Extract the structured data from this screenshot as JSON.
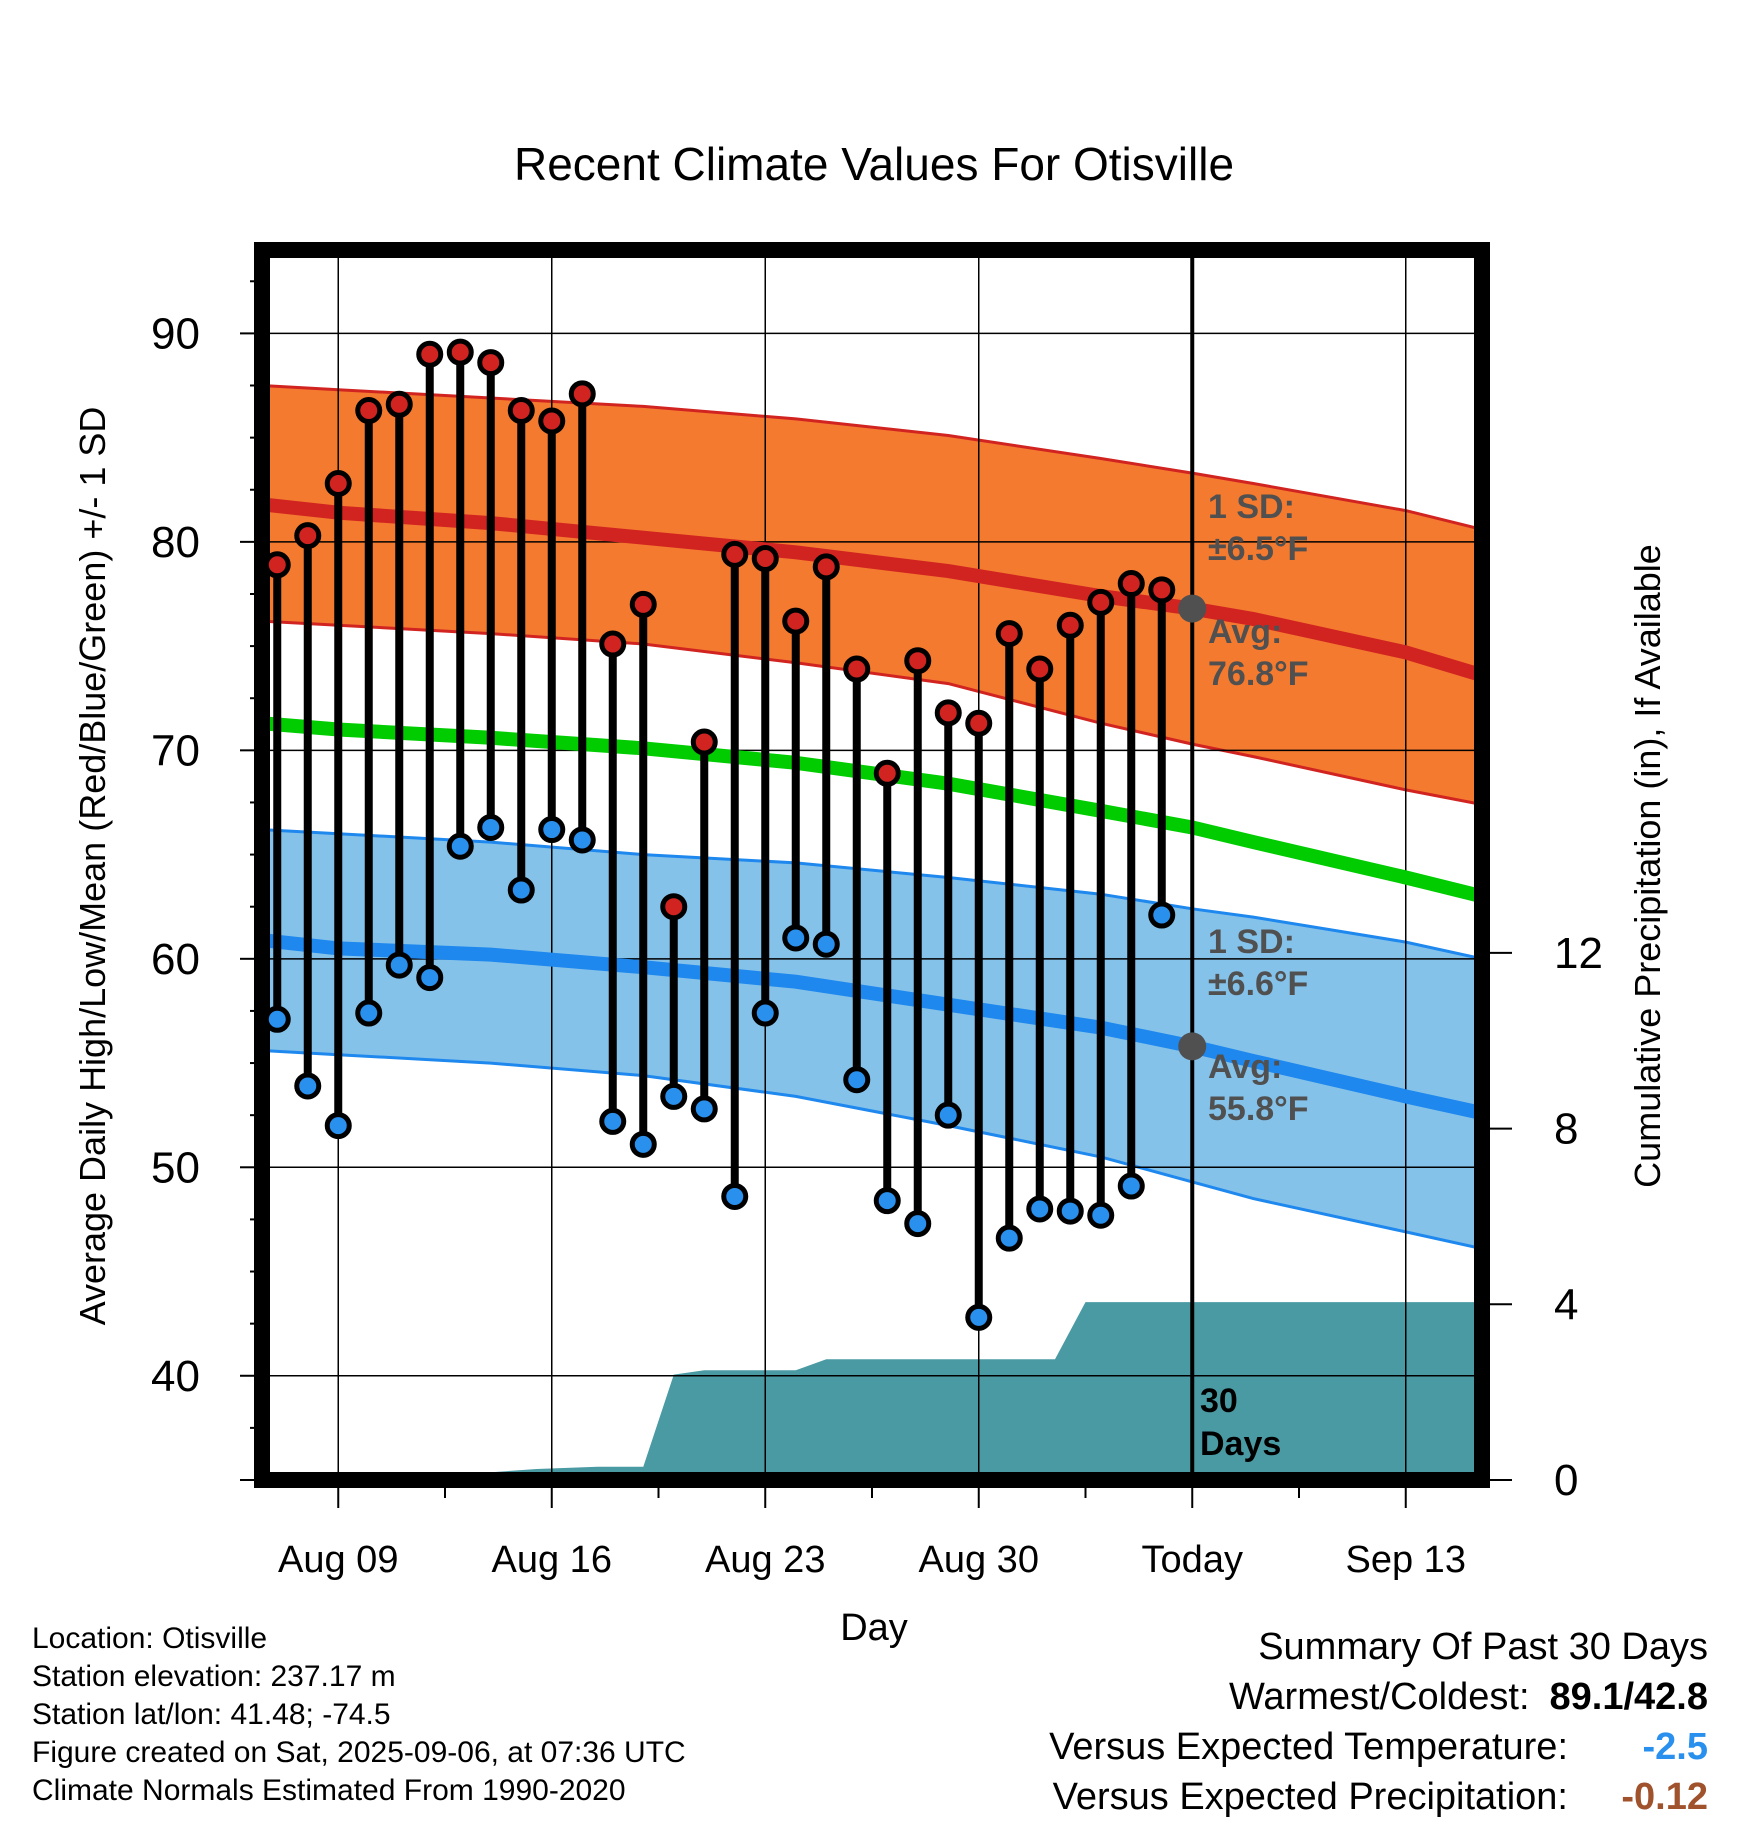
{
  "title": "Recent Climate Values For Otisville",
  "y_left_label": "Average Daily High/Low/Mean (Red/Blue/Green) +/- 1 SD",
  "y_right_label": "Cumulative Precipitation (in), If Available",
  "x_label": "Day",
  "annotations": {
    "high_sd": "1 SD:",
    "high_sd_val": "±6.5°F",
    "high_avg": "Avg:",
    "high_avg_val": "76.8°F",
    "low_sd": "1 SD:",
    "low_sd_val": "±6.6°F",
    "low_avg": "Avg:",
    "low_avg_val": "55.8°F",
    "days_1": "30",
    "days_2": "Days"
  },
  "info": {
    "location": "Location: Otisville",
    "elevation": "Station elevation: 237.17 m",
    "latlon": "Station lat/lon: 41.48; -74.5",
    "created": "Figure created on Sat, 2025-09-06, at 07:36 UTC",
    "normals": "Climate Normals Estimated From 1990-2020"
  },
  "summary": {
    "title": "Summary Of Past 30 Days",
    "warm_label": "Warmest/Coldest:",
    "warm_value": "89.1/42.8",
    "temp_label": "Versus Expected Temperature:",
    "temp_value": "-2.5",
    "precip_label": "Versus Expected Precipitation:",
    "precip_value": "-0.12"
  },
  "colors": {
    "high_band": "#f47a2f",
    "high_line": "#d12421",
    "mean_line": "#00cc00",
    "low_band": "#85c2ea",
    "low_line": "#1e88ee",
    "precip": "#4a9aa3",
    "high_dot": "#d12421",
    "low_dot": "#2a90ee",
    "annotation": "#505050",
    "temp_value": "#2a90ee",
    "precip_value": "#a0522d"
  },
  "chart_data": {
    "type": "line",
    "x_axis": {
      "tick_labels": [
        "Aug 09",
        "Aug 16",
        "Aug 23",
        "Aug 30",
        "Today",
        "Sep 13"
      ],
      "tick_days": [
        0,
        7,
        14,
        21,
        28,
        35
      ],
      "range_days": [
        -2.5,
        37.5
      ]
    },
    "y_left": {
      "range": [
        35,
        94
      ],
      "ticks": [
        40,
        50,
        60,
        70,
        80,
        90
      ]
    },
    "y_right": {
      "range": [
        0,
        28
      ],
      "ticks": [
        0,
        4,
        8,
        12
      ]
    },
    "observed": {
      "days": [
        -2,
        -1,
        0,
        1,
        2,
        3,
        4,
        5,
        6,
        7,
        8,
        9,
        10,
        11,
        12,
        13,
        14,
        15,
        16,
        17,
        18,
        19,
        20,
        21,
        22,
        23,
        24,
        25,
        26,
        27
      ],
      "high": [
        78.9,
        80.3,
        82.8,
        86.3,
        86.6,
        89.0,
        89.1,
        88.6,
        86.3,
        85.8,
        87.1,
        75.1,
        77.0,
        62.5,
        70.4,
        79.4,
        79.2,
        76.2,
        78.8,
        73.9,
        68.9,
        74.3,
        71.8,
        71.3,
        75.6,
        73.9,
        76.0,
        77.1,
        78.0,
        77.7
      ],
      "low": [
        57.1,
        53.9,
        52.0,
        57.4,
        59.7,
        59.1,
        65.4,
        66.3,
        63.3,
        66.2,
        65.7,
        52.2,
        51.1,
        53.4,
        52.8,
        48.6,
        57.4,
        61.0,
        60.7,
        54.2,
        48.4,
        47.3,
        52.5,
        42.8,
        46.6,
        48.0,
        47.9,
        47.7,
        49.1,
        62.1
      ]
    },
    "normals": {
      "days": [
        -2.5,
        0,
        5,
        10,
        15,
        20,
        25,
        28,
        30,
        35,
        37.5
      ],
      "avg_high": [
        81.8,
        81.4,
        80.9,
        80.2,
        79.5,
        78.6,
        77.4,
        76.8,
        76.3,
        74.7,
        73.6
      ],
      "high_upper": [
        87.5,
        87.3,
        86.9,
        86.5,
        85.9,
        85.1,
        84.0,
        83.3,
        82.8,
        81.5,
        80.6
      ],
      "high_lower": [
        76.2,
        76.0,
        75.6,
        75.1,
        74.2,
        73.2,
        71.3,
        70.3,
        69.7,
        68.1,
        67.4
      ],
      "avg_mean": [
        71.3,
        71.0,
        70.6,
        70.1,
        69.4,
        68.4,
        67.1,
        66.3,
        65.6,
        63.9,
        63.0
      ],
      "avg_low": [
        60.9,
        60.5,
        60.2,
        59.6,
        58.9,
        57.8,
        56.7,
        55.8,
        55.1,
        53.4,
        52.6
      ],
      "low_upper": [
        66.2,
        66.0,
        65.6,
        65.0,
        64.6,
        63.9,
        63.1,
        62.4,
        62.0,
        60.8,
        60.0
      ],
      "low_lower": [
        55.6,
        55.4,
        55.0,
        54.4,
        53.4,
        52.0,
        50.5,
        49.3,
        48.5,
        46.9,
        46.1
      ]
    },
    "precipitation": {
      "days": [
        -2.5,
        2.5,
        4.5,
        6.5,
        8.5,
        10.0,
        11.0,
        12.0,
        15.0,
        16.0,
        23.5,
        24.5,
        37.5
      ],
      "cumulative_in": [
        0.0,
        0.0,
        0.15,
        0.25,
        0.3,
        0.3,
        2.4,
        2.5,
        2.5,
        2.75,
        2.75,
        4.05,
        4.05
      ]
    }
  }
}
